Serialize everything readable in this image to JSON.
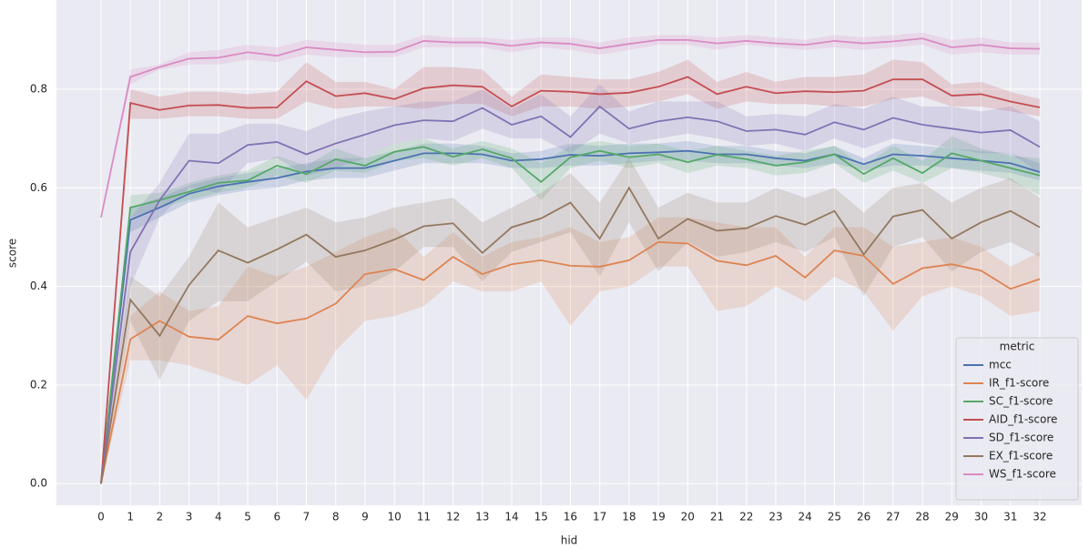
{
  "chart_data": {
    "type": "line",
    "xlabel": "hid",
    "ylabel": "score",
    "x": [
      0,
      1,
      2,
      3,
      4,
      5,
      6,
      7,
      8,
      9,
      10,
      11,
      12,
      13,
      14,
      15,
      16,
      17,
      18,
      19,
      20,
      21,
      22,
      23,
      24,
      25,
      26,
      27,
      28,
      29,
      30,
      31,
      32
    ],
    "xlim": [
      -1.52,
      33.43
    ],
    "xticks": [
      0,
      1,
      2,
      3,
      4,
      5,
      6,
      7,
      8,
      9,
      10,
      11,
      12,
      13,
      14,
      15,
      16,
      17,
      18,
      19,
      20,
      21,
      22,
      23,
      24,
      25,
      26,
      27,
      28,
      29,
      30,
      31,
      32
    ],
    "ylim": [
      -0.044,
      0.981
    ],
    "yticks": [
      {
        "value": 0,
        "label": "0.0"
      },
      0.2,
      0.4,
      0.6,
      0.8
    ],
    "grid": true,
    "legend_title": "metric",
    "legend": "lower right",
    "series": [
      {
        "name": "mcc",
        "color": "#4c72b0",
        "values": [
          0,
          0.535,
          0.56,
          0.588,
          0.603,
          0.612,
          0.62,
          0.633,
          0.64,
          0.64,
          0.655,
          0.67,
          0.67,
          0.668,
          0.655,
          0.658,
          0.667,
          0.665,
          0.67,
          0.672,
          0.675,
          0.668,
          0.668,
          0.66,
          0.655,
          0.668,
          0.648,
          0.668,
          0.665,
          0.66,
          0.655,
          0.65,
          0.632
        ],
        "ci_lower": [
          0,
          0.51,
          0.54,
          0.57,
          0.585,
          0.595,
          0.6,
          0.615,
          0.62,
          0.62,
          0.635,
          0.65,
          0.65,
          0.65,
          0.64,
          0.64,
          0.645,
          0.645,
          0.65,
          0.655,
          0.655,
          0.65,
          0.65,
          0.645,
          0.64,
          0.65,
          0.635,
          0.645,
          0.645,
          0.64,
          0.635,
          0.63,
          0.615
        ],
        "ci_upper": [
          0,
          0.56,
          0.58,
          0.605,
          0.62,
          0.63,
          0.64,
          0.65,
          0.66,
          0.66,
          0.675,
          0.69,
          0.69,
          0.685,
          0.67,
          0.675,
          0.69,
          0.685,
          0.69,
          0.69,
          0.695,
          0.685,
          0.685,
          0.675,
          0.67,
          0.685,
          0.66,
          0.69,
          0.685,
          0.68,
          0.675,
          0.67,
          0.65
        ]
      },
      {
        "name": "IR_f1-score",
        "color": "#dd8452",
        "values": [
          0,
          0.293,
          0.33,
          0.298,
          0.292,
          0.34,
          0.325,
          0.335,
          0.365,
          0.425,
          0.435,
          0.413,
          0.46,
          0.425,
          0.445,
          0.453,
          0.442,
          0.44,
          0.453,
          0.49,
          0.487,
          0.452,
          0.443,
          0.462,
          0.418,
          0.473,
          0.462,
          0.405,
          0.437,
          0.445,
          0.432,
          0.395,
          0.415
        ],
        "ci_lower": [
          0,
          0.25,
          0.25,
          0.24,
          0.22,
          0.2,
          0.24,
          0.17,
          0.27,
          0.33,
          0.34,
          0.36,
          0.41,
          0.39,
          0.39,
          0.41,
          0.32,
          0.39,
          0.4,
          0.44,
          0.44,
          0.35,
          0.36,
          0.4,
          0.37,
          0.42,
          0.39,
          0.31,
          0.38,
          0.4,
          0.38,
          0.34,
          0.35
        ],
        "ci_upper": [
          0,
          0.34,
          0.39,
          0.35,
          0.36,
          0.44,
          0.42,
          0.44,
          0.47,
          0.5,
          0.52,
          0.46,
          0.51,
          0.46,
          0.49,
          0.5,
          0.52,
          0.49,
          0.5,
          0.54,
          0.54,
          0.53,
          0.52,
          0.52,
          0.46,
          0.52,
          0.52,
          0.48,
          0.49,
          0.5,
          0.48,
          0.44,
          0.47
        ]
      },
      {
        "name": "SC_f1-score",
        "color": "#55a868",
        "values": [
          0,
          0.56,
          0.575,
          0.592,
          0.61,
          0.615,
          0.645,
          0.628,
          0.658,
          0.645,
          0.673,
          0.683,
          0.663,
          0.678,
          0.66,
          0.612,
          0.662,
          0.675,
          0.662,
          0.668,
          0.652,
          0.667,
          0.658,
          0.645,
          0.652,
          0.668,
          0.628,
          0.66,
          0.63,
          0.67,
          0.655,
          0.64,
          0.625
        ],
        "ci_lower": [
          0,
          0.54,
          0.56,
          0.575,
          0.59,
          0.6,
          0.625,
          0.61,
          0.635,
          0.63,
          0.655,
          0.66,
          0.645,
          0.66,
          0.64,
          0.575,
          0.64,
          0.655,
          0.64,
          0.65,
          0.63,
          0.645,
          0.64,
          0.625,
          0.63,
          0.65,
          0.61,
          0.635,
          0.61,
          0.64,
          0.63,
          0.615,
          0.585
        ],
        "ci_upper": [
          0,
          0.585,
          0.59,
          0.61,
          0.625,
          0.635,
          0.665,
          0.645,
          0.68,
          0.66,
          0.69,
          0.7,
          0.68,
          0.695,
          0.68,
          0.65,
          0.685,
          0.695,
          0.685,
          0.69,
          0.675,
          0.685,
          0.675,
          0.665,
          0.675,
          0.685,
          0.645,
          0.685,
          0.655,
          0.705,
          0.68,
          0.665,
          0.66
        ]
      },
      {
        "name": "AID_f1-score",
        "color": "#c44e52",
        "values": [
          0,
          0.772,
          0.758,
          0.767,
          0.768,
          0.762,
          0.763,
          0.816,
          0.786,
          0.792,
          0.78,
          0.802,
          0.808,
          0.805,
          0.765,
          0.797,
          0.795,
          0.79,
          0.793,
          0.805,
          0.825,
          0.79,
          0.805,
          0.792,
          0.796,
          0.794,
          0.797,
          0.82,
          0.82,
          0.787,
          0.79,
          0.775,
          0.763
        ],
        "ci_lower": [
          0,
          0.74,
          0.74,
          0.745,
          0.745,
          0.74,
          0.74,
          0.775,
          0.76,
          0.765,
          0.765,
          0.76,
          0.77,
          0.77,
          0.745,
          0.765,
          0.765,
          0.76,
          0.765,
          0.775,
          0.79,
          0.76,
          0.775,
          0.77,
          0.77,
          0.765,
          0.765,
          0.78,
          0.785,
          0.765,
          0.765,
          0.755,
          0.745
        ],
        "ci_upper": [
          0,
          0.8,
          0.785,
          0.795,
          0.795,
          0.79,
          0.795,
          0.855,
          0.815,
          0.815,
          0.8,
          0.845,
          0.845,
          0.84,
          0.785,
          0.83,
          0.825,
          0.82,
          0.82,
          0.835,
          0.86,
          0.815,
          0.835,
          0.815,
          0.825,
          0.825,
          0.83,
          0.86,
          0.855,
          0.81,
          0.815,
          0.795,
          0.78
        ]
      },
      {
        "name": "SD_f1-score",
        "color": "#8172b3",
        "values": [
          0,
          0.47,
          0.575,
          0.655,
          0.65,
          0.687,
          0.693,
          0.668,
          0.69,
          0.708,
          0.727,
          0.737,
          0.735,
          0.762,
          0.728,
          0.745,
          0.703,
          0.765,
          0.72,
          0.735,
          0.743,
          0.735,
          0.715,
          0.718,
          0.708,
          0.733,
          0.718,
          0.742,
          0.728,
          0.72,
          0.712,
          0.717,
          0.683
        ],
        "ci_lower": [
          0,
          0.4,
          0.54,
          0.6,
          0.59,
          0.65,
          0.66,
          0.625,
          0.64,
          0.66,
          0.69,
          0.7,
          0.695,
          0.72,
          0.7,
          0.7,
          0.67,
          0.71,
          0.69,
          0.7,
          0.71,
          0.7,
          0.685,
          0.69,
          0.675,
          0.7,
          0.68,
          0.7,
          0.69,
          0.68,
          0.67,
          0.67,
          0.63
        ],
        "ci_upper": [
          0,
          0.54,
          0.61,
          0.71,
          0.71,
          0.73,
          0.73,
          0.715,
          0.74,
          0.755,
          0.765,
          0.775,
          0.775,
          0.8,
          0.76,
          0.79,
          0.745,
          0.81,
          0.755,
          0.775,
          0.775,
          0.775,
          0.745,
          0.75,
          0.745,
          0.77,
          0.76,
          0.785,
          0.765,
          0.765,
          0.755,
          0.765,
          0.735
        ]
      },
      {
        "name": "EX_f1-score",
        "color": "#937860",
        "values": [
          0,
          0.373,
          0.3,
          0.403,
          0.473,
          0.448,
          0.475,
          0.505,
          0.46,
          0.473,
          0.495,
          0.522,
          0.528,
          0.468,
          0.52,
          0.538,
          0.57,
          0.497,
          0.6,
          0.497,
          0.537,
          0.513,
          0.518,
          0.543,
          0.525,
          0.553,
          0.465,
          0.542,
          0.555,
          0.497,
          0.53,
          0.553,
          0.52
        ],
        "ci_lower": [
          0,
          0.33,
          0.21,
          0.33,
          0.37,
          0.37,
          0.41,
          0.45,
          0.39,
          0.4,
          0.43,
          0.48,
          0.48,
          0.41,
          0.47,
          0.49,
          0.51,
          0.42,
          0.53,
          0.43,
          0.49,
          0.46,
          0.47,
          0.49,
          0.47,
          0.5,
          0.38,
          0.48,
          0.5,
          0.43,
          0.47,
          0.49,
          0.46
        ],
        "ci_upper": [
          0,
          0.42,
          0.38,
          0.46,
          0.57,
          0.52,
          0.54,
          0.56,
          0.53,
          0.54,
          0.56,
          0.57,
          0.58,
          0.53,
          0.56,
          0.59,
          0.63,
          0.57,
          0.66,
          0.56,
          0.59,
          0.57,
          0.57,
          0.6,
          0.58,
          0.6,
          0.55,
          0.6,
          0.61,
          0.57,
          0.6,
          0.62,
          0.58
        ]
      },
      {
        "name": "WS_f1-score",
        "color": "#da8bc3",
        "values": [
          0.54,
          0.825,
          0.845,
          0.862,
          0.864,
          0.875,
          0.868,
          0.885,
          0.88,
          0.875,
          0.876,
          0.898,
          0.895,
          0.895,
          0.888,
          0.895,
          0.892,
          0.883,
          0.892,
          0.9,
          0.9,
          0.893,
          0.898,
          0.893,
          0.89,
          0.898,
          0.893,
          0.897,
          0.903,
          0.885,
          0.89,
          0.883,
          0.882
        ],
        "ci_lower": [
          0.54,
          0.81,
          0.84,
          0.85,
          0.85,
          0.86,
          0.855,
          0.87,
          0.865,
          0.865,
          0.865,
          0.885,
          0.885,
          0.885,
          0.875,
          0.885,
          0.88,
          0.87,
          0.88,
          0.89,
          0.89,
          0.88,
          0.89,
          0.885,
          0.88,
          0.885,
          0.88,
          0.885,
          0.89,
          0.87,
          0.875,
          0.87,
          0.87
        ],
        "ci_upper": [
          0.54,
          0.84,
          0.85,
          0.875,
          0.88,
          0.89,
          0.885,
          0.9,
          0.895,
          0.89,
          0.89,
          0.91,
          0.905,
          0.905,
          0.9,
          0.905,
          0.905,
          0.895,
          0.905,
          0.91,
          0.91,
          0.905,
          0.91,
          0.905,
          0.9,
          0.91,
          0.905,
          0.91,
          0.915,
          0.9,
          0.905,
          0.895,
          0.895
        ]
      }
    ]
  }
}
